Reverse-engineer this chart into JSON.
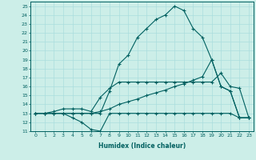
{
  "xlabel": "Humidex (Indice chaleur)",
  "xlim": [
    -0.5,
    23.5
  ],
  "ylim": [
    11,
    25.5
  ],
  "xticks": [
    0,
    1,
    2,
    3,
    4,
    5,
    6,
    7,
    8,
    9,
    10,
    11,
    12,
    13,
    14,
    15,
    16,
    17,
    18,
    19,
    20,
    21,
    22,
    23
  ],
  "yticks": [
    11,
    12,
    13,
    14,
    15,
    16,
    17,
    18,
    19,
    20,
    21,
    22,
    23,
    24,
    25
  ],
  "bg_color": "#cceee8",
  "line_color": "#006060",
  "grid_color": "#aadddd",
  "lines": [
    {
      "x": [
        0,
        1,
        2,
        3,
        4,
        5,
        6,
        7,
        8,
        9,
        10,
        11,
        12,
        13,
        14,
        15,
        16,
        17,
        18,
        19,
        20,
        21,
        22,
        23
      ],
      "y": [
        13,
        13,
        13,
        13,
        12.5,
        12,
        11.2,
        11,
        13,
        13,
        13,
        13,
        13,
        13,
        13,
        13,
        13,
        13,
        13,
        13,
        13,
        13,
        12.5,
        12.5
      ]
    },
    {
      "x": [
        0,
        1,
        2,
        3,
        4,
        5,
        6,
        7,
        8,
        9,
        10,
        11,
        12,
        13,
        14,
        15,
        16,
        17,
        18,
        19,
        20,
        21,
        22,
        23
      ],
      "y": [
        13,
        13,
        13,
        13,
        13,
        13,
        13,
        13.2,
        13.5,
        14,
        14.3,
        14.6,
        15,
        15.3,
        15.6,
        16,
        16.3,
        16.7,
        17.1,
        19,
        16,
        15.5,
        12.5,
        12.5
      ]
    },
    {
      "x": [
        0,
        1,
        2,
        3,
        4,
        5,
        6,
        7,
        8,
        9,
        10,
        11,
        12,
        13,
        14,
        15,
        16,
        17,
        18,
        19,
        20,
        21,
        22,
        23
      ],
      "y": [
        13,
        13,
        13.2,
        13.5,
        13.5,
        13.5,
        13.2,
        14.8,
        15.8,
        16.5,
        16.5,
        16.5,
        16.5,
        16.5,
        16.5,
        16.5,
        16.5,
        16.5,
        16.5,
        16.5,
        17.5,
        16,
        15.8,
        12.5
      ]
    },
    {
      "x": [
        0,
        1,
        2,
        3,
        4,
        5,
        6,
        7,
        8,
        9,
        10,
        11,
        12,
        13,
        14,
        15,
        16,
        17,
        18,
        19,
        20,
        21,
        22,
        23
      ],
      "y": [
        13,
        13,
        13,
        13,
        13,
        13,
        13,
        13,
        15.5,
        18.5,
        19.5,
        21.5,
        22.5,
        23.5,
        24,
        25,
        24.5,
        22.5,
        21.5,
        19,
        16,
        15.5,
        12.5,
        12.5
      ]
    }
  ]
}
